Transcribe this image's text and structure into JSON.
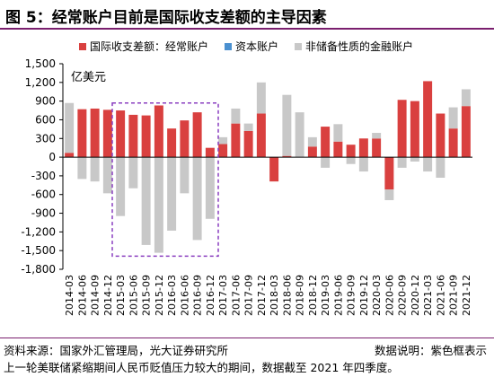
{
  "figure": {
    "title": "图 5：经常账户目前是国际收支差额的主导因素",
    "source": "资料来源：国家外汇管理局，光大证券研究所",
    "note_right": "数据说明：紫色框表示",
    "note": "上一轮美联储紧缩期间人民币贬值压力较大的期间，数据截至 2021 年四季度。"
  },
  "colors": {
    "current_account": "#d9403f",
    "capital_account": "#4a90d0",
    "financial_account": "#c8c8c8",
    "highlight_box": "#8a3fc0",
    "title_rule": "#7a1f6e"
  },
  "chart_data": {
    "type": "bar",
    "stacked": true,
    "unit": "亿美元",
    "ylim": [
      -1800,
      1500
    ],
    "yticks": [
      1500,
      1200,
      900,
      600,
      300,
      0,
      -300,
      -600,
      -900,
      -1200,
      -1500,
      -1800
    ],
    "ytick_labels": [
      "1,500",
      "1,200",
      "900",
      "600",
      "300",
      "0",
      "-300",
      "-600",
      "-900",
      "-1,200",
      "-1,500",
      "-1,800"
    ],
    "grid": false,
    "legend_position": "top",
    "categories": [
      "2014-03",
      "2014-06",
      "2014-09",
      "2014-12",
      "2015-03",
      "2015-06",
      "2015-09",
      "2015-12",
      "2016-03",
      "2016-06",
      "2016-09",
      "2016-12",
      "2017-03",
      "2017-06",
      "2017-09",
      "2017-12",
      "2018-03",
      "2018-06",
      "2018-09",
      "2018-12",
      "2019-03",
      "2019-06",
      "2019-09",
      "2019-12",
      "2020-03",
      "2020-06",
      "2020-09",
      "2020-12",
      "2021-03",
      "2021-06",
      "2021-09",
      "2021-12"
    ],
    "xtick_labels": [
      "2014-03",
      "2014-06",
      "2014-09",
      "2014-12",
      "2015-03",
      "2015-06",
      "2015-09",
      "2015-12",
      "2016-03",
      "2016-06",
      "2016-09",
      "2016-12",
      "2017-03",
      "2017-06",
      "2017-09",
      "2017-12",
      "2018-03",
      "2018-06",
      "2018-09",
      "2018-12",
      "2019-03",
      "2019-06",
      "2019-09",
      "2019-12",
      "2020-03",
      "2020-06",
      "2020-09",
      "2020-12",
      "2021-03",
      "2021-06",
      "2021-09",
      "2021-12"
    ],
    "series": [
      {
        "name": "国际收支差额：经常账户",
        "color_key": "current_account",
        "values": [
          70,
          770,
          780,
          760,
          750,
          680,
          670,
          830,
          460,
          590,
          720,
          150,
          210,
          540,
          420,
          700,
          -390,
          20,
          0,
          170,
          490,
          250,
          200,
          300,
          300,
          -520,
          920,
          900,
          1220,
          700,
          460,
          820
        ]
      },
      {
        "name": "资本账户",
        "color_key": "capital_account",
        "values": [
          0,
          0,
          0,
          0,
          -5,
          0,
          0,
          -5,
          0,
          0,
          0,
          0,
          0,
          0,
          0,
          0,
          0,
          0,
          0,
          0,
          0,
          0,
          0,
          0,
          0,
          0,
          0,
          0,
          0,
          0,
          0,
          0
        ]
      },
      {
        "name": "非储备性质的金融账户",
        "color_key": "financial_account",
        "values": [
          800,
          -350,
          -390,
          -580,
          -940,
          -500,
          -1410,
          -1530,
          -1180,
          -580,
          -1330,
          -990,
          110,
          240,
          120,
          500,
          0,
          980,
          720,
          150,
          -170,
          280,
          -110,
          -230,
          90,
          -170,
          -170,
          -70,
          -230,
          -330,
          340,
          270
        ]
      }
    ],
    "annotations": [
      "亿美元"
    ],
    "highlight_range": [
      "2015-03",
      "2016-12"
    ]
  }
}
